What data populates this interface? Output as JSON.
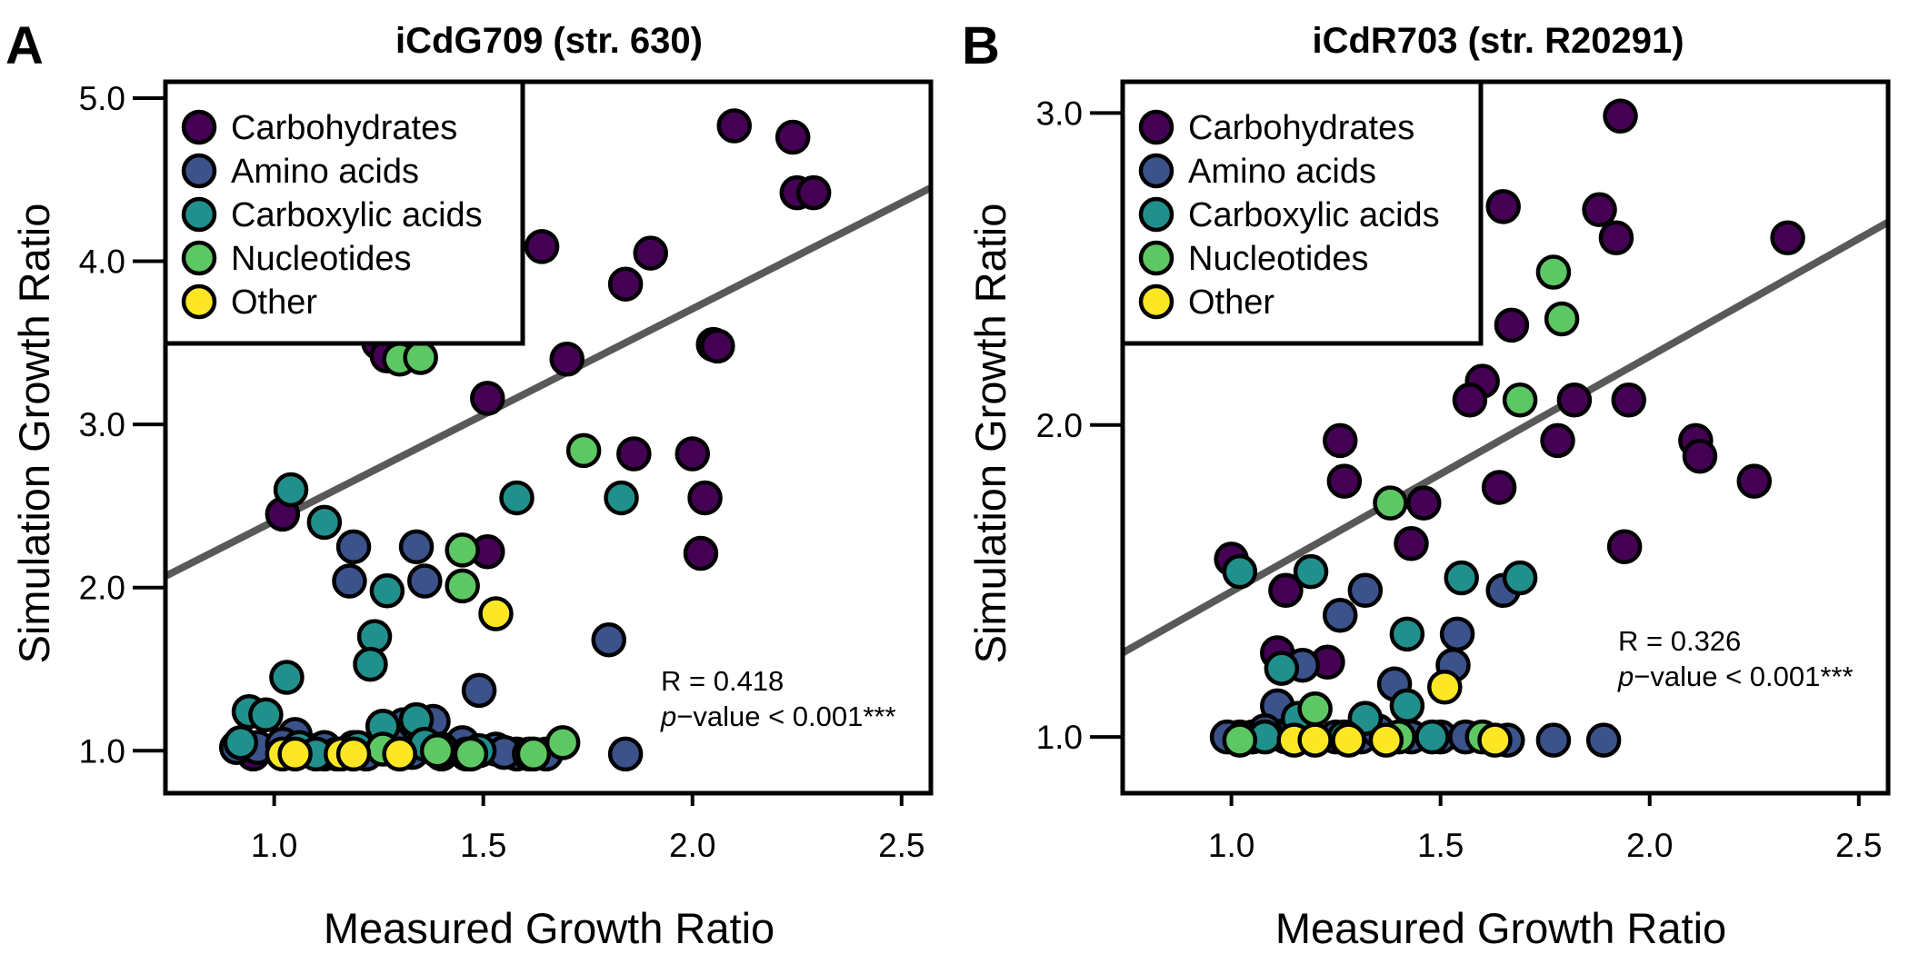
{
  "figure": {
    "panels": [
      {
        "letter": "A",
        "title": "iCdG709 (str. 630)",
        "xlabel": "Measured Growth Ratio",
        "ylabel": "Simulation Growth Ratio",
        "x_ticks": [
          "1.0",
          "1.5",
          "2.0",
          "2.5"
        ],
        "y_ticks": [
          "1.0",
          "2.0",
          "3.0",
          "4.0",
          "5.0"
        ],
        "stats": {
          "r": "R = 0.418",
          "p_italic": "p",
          "p_rest": "−value < 0.001***"
        }
      },
      {
        "letter": "B",
        "title": "iCdR703 (str. R20291)",
        "xlabel": "Measured Growth Ratio",
        "ylabel": "Simulation Growth Ratio",
        "x_ticks": [
          "1.0",
          "1.5",
          "2.0",
          "2.5"
        ],
        "y_ticks": [
          "1.0",
          "2.0",
          "3.0"
        ],
        "stats": {
          "r": "R = 0.326",
          "p_italic": "p",
          "p_rest": "−value < 0.001***"
        }
      }
    ],
    "legend": [
      {
        "label": "Carbohydrates",
        "color": "#440154"
      },
      {
        "label": "Amino acids",
        "color": "#3b528b"
      },
      {
        "label": "Carboxylic acids",
        "color": "#21908c"
      },
      {
        "label": "Nucleotides",
        "color": "#5dc863"
      },
      {
        "label": "Other",
        "color": "#fde725"
      }
    ],
    "fit_line_color": "#595959"
  },
  "chart_data": [
    {
      "type": "scatter",
      "title": "iCdG709 (str. 630)",
      "xlabel": "Measured Growth Ratio",
      "ylabel": "Simulation Growth Ratio",
      "xlim": [
        0.74,
        2.57
      ],
      "ylim": [
        0.74,
        5.1
      ],
      "x_ticks": [
        1.0,
        1.5,
        2.0,
        2.5
      ],
      "y_ticks": [
        1.0,
        2.0,
        3.0,
        4.0,
        5.0
      ],
      "grid": false,
      "legend_position": "top-left",
      "fit_line": {
        "x": [
          0.74,
          2.57
        ],
        "y": [
          2.07,
          4.45
        ]
      },
      "series": [
        {
          "name": "Carbohydrates",
          "color": "#440154",
          "points": [
            [
              2.1,
              4.83
            ],
            [
              2.24,
              4.76
            ],
            [
              2.25,
              4.42
            ],
            [
              2.29,
              4.42
            ],
            [
              1.64,
              4.09
            ],
            [
              1.9,
              4.05
            ],
            [
              1.84,
              3.86
            ],
            [
              2.05,
              3.49
            ],
            [
              2.06,
              3.48
            ],
            [
              1.7,
              3.4
            ],
            [
              1.51,
              3.16
            ],
            [
              2.0,
              2.82
            ],
            [
              1.86,
              2.82
            ],
            [
              2.03,
              2.55
            ],
            [
              2.02,
              2.21
            ],
            [
              1.51,
              2.22
            ],
            [
              1.02,
              2.45
            ],
            [
              1.25,
              3.5
            ],
            [
              1.27,
              3.42
            ],
            [
              0.95,
              0.98
            ],
            [
              1.12,
              0.98
            ],
            [
              1.4,
              0.98
            ]
          ]
        },
        {
          "name": "Amino acids",
          "color": "#3b528b",
          "points": [
            [
              1.19,
              2.25
            ],
            [
              1.34,
              2.25
            ],
            [
              1.18,
              2.04
            ],
            [
              1.36,
              2.04
            ],
            [
              1.49,
              1.37
            ],
            [
              1.8,
              1.68
            ],
            [
              1.84,
              0.98
            ],
            [
              1.53,
              1.01
            ],
            [
              1.45,
              1.05
            ],
            [
              1.05,
              1.1
            ],
            [
              1.26,
              1.15
            ],
            [
              1.31,
              1.16
            ],
            [
              1.38,
              1.18
            ],
            [
              0.91,
              1.02
            ],
            [
              0.96,
              1.02
            ],
            [
              1.09,
              1.0
            ],
            [
              1.22,
              0.98
            ],
            [
              1.33,
              0.99
            ],
            [
              1.47,
              0.98
            ],
            [
              1.58,
              0.98
            ],
            [
              1.12,
              1.02
            ],
            [
              1.28,
              1.05
            ],
            [
              1.4,
              1.01
            ],
            [
              1.55,
              0.99
            ],
            [
              1.65,
              0.98
            ],
            [
              1.19,
              1.02
            ],
            [
              1.02,
              1.04
            ]
          ]
        },
        {
          "name": "Carboxylic acids",
          "color": "#21908c",
          "points": [
            [
              1.04,
              2.6
            ],
            [
              1.12,
              2.4
            ],
            [
              1.27,
              1.98
            ],
            [
              1.24,
              1.7
            ],
            [
              1.23,
              1.53
            ],
            [
              1.03,
              1.45
            ],
            [
              1.58,
              2.55
            ],
            [
              1.83,
              2.55
            ],
            [
              0.94,
              1.24
            ],
            [
              0.98,
              1.22
            ],
            [
              1.34,
              1.19
            ],
            [
              1.26,
              1.15
            ],
            [
              1.36,
              1.04
            ],
            [
              0.92,
              1.05
            ],
            [
              1.06,
              1.02
            ],
            [
              1.15,
              0.98
            ],
            [
              1.3,
              0.98
            ],
            [
              1.46,
              0.98
            ],
            [
              1.61,
              0.98
            ],
            [
              1.49,
              1.0
            ],
            [
              1.2,
              1.02
            ],
            [
              1.1,
              0.98
            ]
          ]
        },
        {
          "name": "Nucleotides",
          "color": "#5dc863",
          "points": [
            [
              1.3,
              3.4
            ],
            [
              1.35,
              3.41
            ],
            [
              1.74,
              2.84
            ],
            [
              1.45,
              2.23
            ],
            [
              1.45,
              2.01
            ],
            [
              1.69,
              1.05
            ],
            [
              1.62,
              0.98
            ],
            [
              1.47,
              0.98
            ],
            [
              1.26,
              1.01
            ],
            [
              1.39,
              1.0
            ]
          ]
        },
        {
          "name": "Other",
          "color": "#fde725",
          "points": [
            [
              1.53,
              1.84
            ],
            [
              1.02,
              0.98
            ],
            [
              1.05,
              0.98
            ],
            [
              1.16,
              0.98
            ],
            [
              1.19,
              0.98
            ],
            [
              1.3,
              0.98
            ]
          ]
        }
      ],
      "annotations": [
        "R = 0.418",
        "p−value < 0.001***"
      ]
    },
    {
      "type": "scatter",
      "title": "iCdR703 (str. R20291)",
      "xlabel": "Measured Growth Ratio",
      "ylabel": "Simulation Growth Ratio",
      "xlim": [
        0.74,
        2.57
      ],
      "ylim": [
        0.82,
        3.1
      ],
      "x_ticks": [
        1.0,
        1.5,
        2.0,
        2.5
      ],
      "y_ticks": [
        1.0,
        2.0,
        3.0
      ],
      "grid": false,
      "legend_position": "top-left",
      "fit_line": {
        "x": [
          0.74,
          2.57
        ],
        "y": [
          1.27,
          2.65
        ]
      },
      "series": [
        {
          "name": "Carbohydrates",
          "color": "#440154",
          "points": [
            [
              1.93,
              2.99
            ],
            [
              1.65,
              2.7
            ],
            [
              1.88,
              2.69
            ],
            [
              1.92,
              2.6
            ],
            [
              2.33,
              2.6
            ],
            [
              1.67,
              2.32
            ],
            [
              1.6,
              2.14
            ],
            [
              1.57,
              2.08
            ],
            [
              1.82,
              2.08
            ],
            [
              1.95,
              2.08
            ],
            [
              1.26,
              1.95
            ],
            [
              1.78,
              1.95
            ],
            [
              2.11,
              1.95
            ],
            [
              2.12,
              1.9
            ],
            [
              2.25,
              1.82
            ],
            [
              1.27,
              1.82
            ],
            [
              1.64,
              1.8
            ],
            [
              1.46,
              1.75
            ],
            [
              1.43,
              1.62
            ],
            [
              1.94,
              1.61
            ],
            [
              1.0,
              1.57
            ],
            [
              1.13,
              1.47
            ],
            [
              1.11,
              1.27
            ],
            [
              1.23,
              1.24
            ],
            [
              1.02,
              1.0
            ]
          ]
        },
        {
          "name": "Amino acids",
          "color": "#3b528b",
          "points": [
            [
              1.65,
              1.47
            ],
            [
              1.32,
              1.47
            ],
            [
              1.26,
              1.39
            ],
            [
              1.54,
              1.33
            ],
            [
              1.53,
              1.23
            ],
            [
              1.17,
              1.23
            ],
            [
              1.39,
              1.17
            ],
            [
              1.11,
              1.1
            ],
            [
              1.16,
              1.05
            ],
            [
              0.99,
              1.0
            ],
            [
              1.05,
              1.0
            ],
            [
              1.13,
              1.0
            ],
            [
              1.19,
              1.0
            ],
            [
              1.25,
              1.0
            ],
            [
              1.31,
              1.0
            ],
            [
              1.37,
              1.0
            ],
            [
              1.43,
              1.0
            ],
            [
              1.5,
              1.0
            ],
            [
              1.56,
              1.0
            ],
            [
              1.66,
              0.99
            ],
            [
              1.77,
              0.99
            ],
            [
              1.89,
              0.99
            ],
            [
              1.08,
              1.02
            ],
            [
              1.35,
              1.02
            ]
          ]
        },
        {
          "name": "Carboxylic acids",
          "color": "#21908c",
          "points": [
            [
              1.02,
              1.53
            ],
            [
              1.19,
              1.53
            ],
            [
              1.55,
              1.51
            ],
            [
              1.69,
              1.51
            ],
            [
              1.42,
              1.33
            ],
            [
              1.12,
              1.22
            ],
            [
              1.42,
              1.1
            ],
            [
              1.16,
              1.06
            ],
            [
              1.32,
              1.06
            ],
            [
              1.48,
              1.0
            ],
            [
              1.27,
              1.0
            ],
            [
              1.08,
              1.0
            ]
          ]
        },
        {
          "name": "Nucleotides",
          "color": "#5dc863",
          "points": [
            [
              1.77,
              2.49
            ],
            [
              1.79,
              2.34
            ],
            [
              1.69,
              2.08
            ],
            [
              1.38,
              1.75
            ],
            [
              1.2,
              1.09
            ],
            [
              1.02,
              0.99
            ],
            [
              1.4,
              1.0
            ],
            [
              1.6,
              1.0
            ]
          ]
        },
        {
          "name": "Other",
          "color": "#fde725",
          "points": [
            [
              1.51,
              1.16
            ],
            [
              1.15,
              0.99
            ],
            [
              1.2,
              0.99
            ],
            [
              1.28,
              0.99
            ],
            [
              1.37,
              0.99
            ],
            [
              1.63,
              0.99
            ]
          ]
        }
      ],
      "annotations": [
        "R = 0.326",
        "p−value < 0.001***"
      ]
    }
  ]
}
